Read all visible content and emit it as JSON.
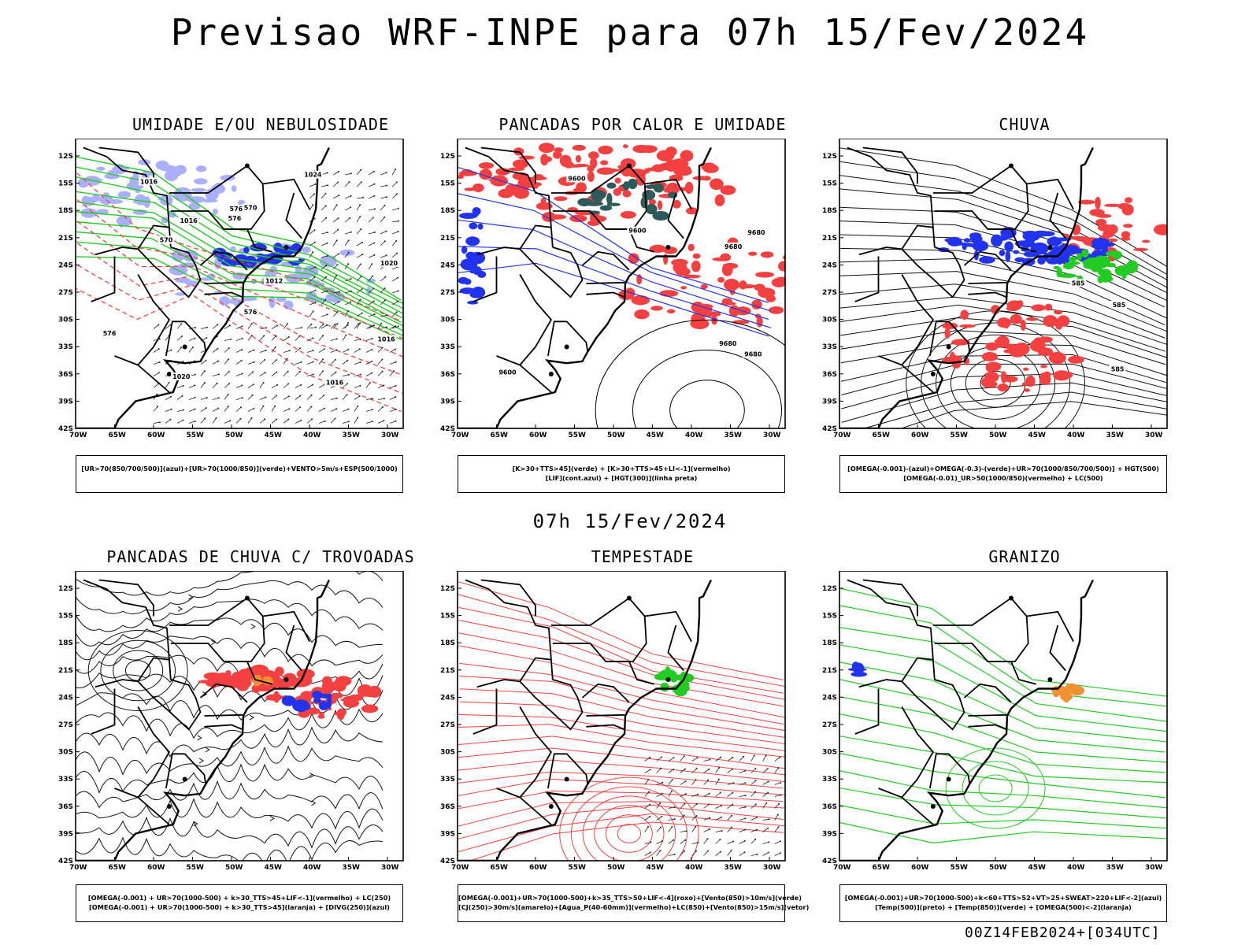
{
  "title": "Previsao WRF-INPE  para 07h 15/Fev/2024",
  "subtitle": "07h 15/Fev/2024",
  "footer": "00Z14FEB2024+[034UTC]",
  "axes": {
    "lat_labels": [
      "12S",
      "15S",
      "18S",
      "21S",
      "24S",
      "27S",
      "30S",
      "33S",
      "36S",
      "39S",
      "42S"
    ],
    "lon_labels": [
      "70W",
      "65W",
      "60W",
      "55W",
      "50W",
      "45W",
      "40W",
      "35W",
      "30W"
    ]
  },
  "colors": {
    "red": "#f44040",
    "green": "#22cc22",
    "blue": "#2233ee",
    "lavender": "#aab0ff",
    "darkteal": "#2f5a5a",
    "orange": "#f09030",
    "black": "#000000"
  },
  "panels": [
    {
      "id": "umidade",
      "title": "UMIDADE E/OU NEBULOSIDADE",
      "legend": [
        "[UR>70(850/700/500)](azul)+[UR>70(1000/850)](verde)+VENTO>5m/s+ESP(500/1000)"
      ],
      "contour_labels": [
        "1016",
        "1016",
        "1016",
        "1020",
        "1020",
        "1024",
        "1016",
        "1012",
        "576",
        "576",
        "576",
        "576",
        "570",
        "570"
      ]
    },
    {
      "id": "pancadas-calor",
      "title": "PANCADAS POR CALOR E UMIDADE",
      "legend": [
        "[K>30+TTS>45](verde) + [K>30+TTS>45+LI<-1](vermelho)",
        "[LIF](cont.azul) + [HGT(300)](linha preta)"
      ],
      "contour_labels": [
        "9680",
        "9680",
        "9680",
        "9600",
        "9600",
        "9600",
        "9680"
      ]
    },
    {
      "id": "chuva",
      "title": "CHUVA",
      "legend": [
        "[OMEGA(-0.001)-(azul)+OMEGA(-0.3)-(verde)+UR>70(1000/850/700/500)] + HGT(500)",
        "[OMEGA(-0.01)_UR>50(1000/850)(vermelho) + LC(500)"
      ],
      "contour_labels": [
        "585",
        "585",
        "585"
      ]
    },
    {
      "id": "trovoadas",
      "title": "PANCADAS DE CHUVA C/ TROVOADAS",
      "legend": [
        "[OMEGA(-0.001) + UR>70(1000-500) + k>30_TTS>45+LIF<-1](vermelho) + LC(250)",
        "[OMEGA(-0.001) + UR>70(1000-500) + k>30_TTS>45](laranja) + [DIVG(250)](azul)"
      ],
      "contour_labels": []
    },
    {
      "id": "tempestade",
      "title": "TEMPESTADE",
      "legend": [
        "[OMEGA(-0.001)+UR>70(1000-500)+k>35_TTS>50+LIF<-4](roxo)+[Vento(850)>10m/s](verde)",
        "[CJ(250)>30m/s](amarelo)+[Agua_P(40-60mm)](vermelho)+LC(850)+[Vento(850)>15m/s](vetor)"
      ],
      "contour_labels": []
    },
    {
      "id": "granizo",
      "title": "GRANIZO",
      "legend": [
        "[OMEGA(-0.001)+UR>70(1000-500)+k<60+TTS>52+VT>25+SWEAT>220+LIF<-2](azul)",
        "[Temp(500)](preto) + [Temp(850)](verde) + [OMEGA(500)<-2](laranja)"
      ],
      "contour_labels": []
    }
  ]
}
